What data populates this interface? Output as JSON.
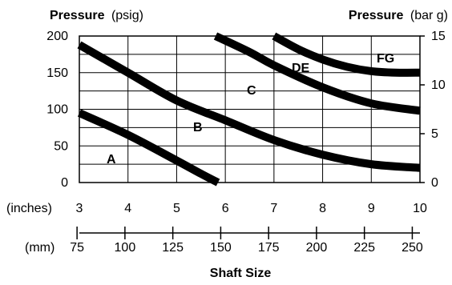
{
  "chart_data": {
    "type": "line",
    "left_axis": {
      "title_bold": "Pressure",
      "title_unit": "(psig)",
      "range": [
        0,
        200
      ],
      "ticks": [
        "0",
        "50",
        "100",
        "150",
        "200"
      ]
    },
    "right_axis": {
      "title_bold": "Pressure",
      "title_unit": "(bar g)",
      "range": [
        0,
        15
      ],
      "ticks": [
        "0",
        "5",
        "10",
        "15"
      ]
    },
    "x_inches": {
      "unit_label": "(inches)",
      "range": [
        3,
        10
      ],
      "ticks": [
        "3",
        "4",
        "5",
        "6",
        "7",
        "8",
        "9",
        "10"
      ]
    },
    "x_mm": {
      "unit_label": "(mm)",
      "ticks": [
        "75",
        "100",
        "125",
        "150",
        "175",
        "200",
        "225",
        "250"
      ]
    },
    "xlabel": "Shaft Size",
    "grid": true,
    "regions": [
      "A",
      "B",
      "C",
      "DE",
      "FG"
    ],
    "series": [
      {
        "x": [
          3,
          4,
          5,
          5.5,
          5.85
        ],
        "y": [
          95,
          65,
          30,
          12,
          0
        ]
      },
      {
        "x": [
          3,
          4,
          5,
          6,
          7,
          8,
          9,
          10
        ],
        "y": [
          188,
          150,
          112,
          85,
          58,
          38,
          25,
          20
        ]
      },
      {
        "x": [
          5.8,
          6.5,
          7,
          8,
          9,
          10
        ],
        "y": [
          200,
          178,
          160,
          130,
          108,
          98
        ]
      },
      {
        "x": [
          7,
          7.5,
          8,
          8.5,
          9,
          9.5,
          10
        ],
        "y": [
          200,
          182,
          168,
          158,
          152,
          150,
          150
        ]
      }
    ]
  }
}
